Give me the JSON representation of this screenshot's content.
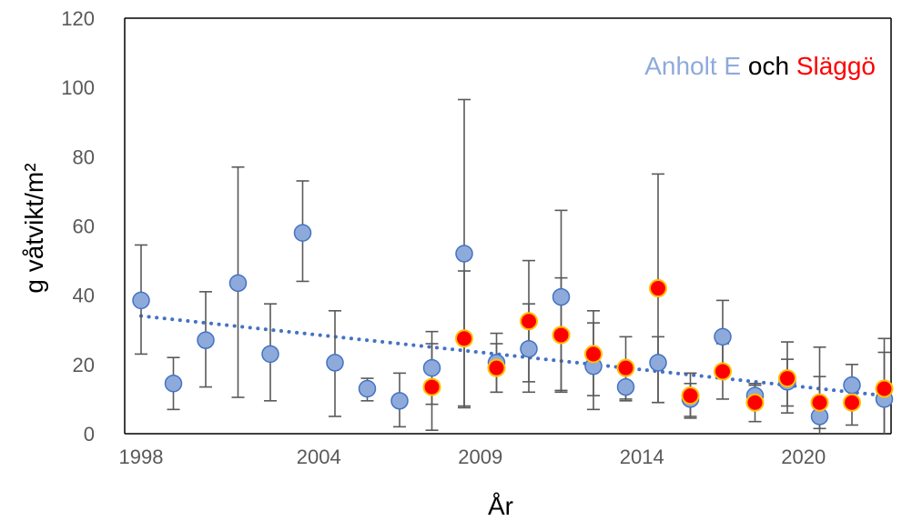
{
  "chart_data": {
    "type": "scatter",
    "title": "",
    "xlabel": "År",
    "ylabel": "g våtvikt/m²",
    "ylim": [
      0,
      120
    ],
    "yticks": [
      0,
      20,
      40,
      60,
      80,
      100,
      120
    ],
    "xlim": [
      1998,
      2023
    ],
    "xtick_labels": [
      {
        "year": 1998,
        "label": "1998"
      },
      {
        "year": 2003.5,
        "label": "2004"
      },
      {
        "year": 2008.5,
        "label": "2009"
      },
      {
        "year": 2013.5,
        "label": "2014"
      },
      {
        "year": 2018.5,
        "label": "2020"
      }
    ],
    "grid": false,
    "legend_placement": "top-right",
    "legend": {
      "series_a_label": "Anholt E",
      "connector": "och",
      "series_b_label": "Släggö"
    },
    "colors": {
      "anholt_fill": "#8eaadb",
      "anholt_stroke": "#4472c4",
      "slaggo_fill": "#ff0000",
      "slaggo_stroke": "#ffc000",
      "errorbar": "#595959",
      "trend": "#4472c4",
      "legend_och": "#000000"
    },
    "series": [
      {
        "name": "Anholt E",
        "points": [
          {
            "x": 1998,
            "y": 38.5,
            "lo": 23.0,
            "hi": 54.5
          },
          {
            "x": 1999,
            "y": 14.5,
            "lo": 7.0,
            "hi": 22.0
          },
          {
            "x": 2000,
            "y": 27.0,
            "lo": 13.5,
            "hi": 41.0
          },
          {
            "x": 2001,
            "y": 43.5,
            "lo": 10.5,
            "hi": 77.0
          },
          {
            "x": 2002,
            "y": 23.0,
            "lo": 9.5,
            "hi": 37.5
          },
          {
            "x": 2003,
            "y": 58.0,
            "lo": 44.0,
            "hi": 73.0
          },
          {
            "x": 2004,
            "y": 20.5,
            "lo": 5.0,
            "hi": 35.5
          },
          {
            "x": 2005,
            "y": 13.0,
            "lo": 9.5,
            "hi": 16.0
          },
          {
            "x": 2006,
            "y": 9.5,
            "lo": 2.0,
            "hi": 17.5
          },
          {
            "x": 2007,
            "y": 19.0,
            "lo": 8.5,
            "hi": 29.5
          },
          {
            "x": 2008,
            "y": 52.0,
            "lo": 7.5,
            "hi": 96.5
          },
          {
            "x": 2009,
            "y": 20.5,
            "lo": 12.0,
            "hi": 29.0
          },
          {
            "x": 2010,
            "y": 24.5,
            "lo": 12.0,
            "hi": 37.5
          },
          {
            "x": 2011,
            "y": 39.5,
            "lo": 12.0,
            "hi": 64.5
          },
          {
            "x": 2012,
            "y": 19.5,
            "lo": 7.0,
            "hi": 32.0
          },
          {
            "x": 2013,
            "y": 13.5,
            "lo": 9.5,
            "hi": 18.0
          },
          {
            "x": 2014,
            "y": 20.5,
            "lo": 9.0,
            "hi": 28.0
          },
          {
            "x": 2015,
            "y": 10.0,
            "lo": 5.0,
            "hi": 14.5
          },
          {
            "x": 2016,
            "y": 28.0,
            "lo": 17.5,
            "hi": 38.5
          },
          {
            "x": 2017,
            "y": 11.0,
            "lo": 7.5,
            "hi": 14.0
          },
          {
            "x": 2018,
            "y": 15.0,
            "lo": 8.0,
            "hi": 21.5
          },
          {
            "x": 2019,
            "y": 5.0,
            "lo": 0.0,
            "hi": 25.0
          },
          {
            "x": 2020,
            "y": 14.0,
            "lo": 8.0,
            "hi": 20.0
          },
          {
            "x": 2021,
            "y": 10.0,
            "lo": 0.0,
            "hi": 23.5
          }
        ]
      },
      {
        "name": "Släggö",
        "points": [
          {
            "x": 2007,
            "y": 13.5,
            "lo": 1.0,
            "hi": 26.0
          },
          {
            "x": 2008,
            "y": 27.5,
            "lo": 8.0,
            "hi": 47.0
          },
          {
            "x": 2009,
            "y": 19.0,
            "lo": 12.0,
            "hi": 26.0
          },
          {
            "x": 2010,
            "y": 32.5,
            "lo": 15.0,
            "hi": 50.0
          },
          {
            "x": 2011,
            "y": 28.5,
            "lo": 12.5,
            "hi": 45.0
          },
          {
            "x": 2012,
            "y": 23.0,
            "lo": 11.0,
            "hi": 35.5
          },
          {
            "x": 2013,
            "y": 19.0,
            "lo": 10.0,
            "hi": 28.0
          },
          {
            "x": 2014,
            "y": 42.0,
            "lo": 9.0,
            "hi": 75.0
          },
          {
            "x": 2015,
            "y": 11.0,
            "lo": 4.5,
            "hi": 17.5
          },
          {
            "x": 2016,
            "y": 18.0,
            "lo": 10.0,
            "hi": 26.0
          },
          {
            "x": 2017,
            "y": 9.0,
            "lo": 3.5,
            "hi": 14.5
          },
          {
            "x": 2018,
            "y": 16.0,
            "lo": 6.0,
            "hi": 26.5
          },
          {
            "x": 2019,
            "y": 9.0,
            "lo": 1.5,
            "hi": 16.5
          },
          {
            "x": 2020,
            "y": 9.0,
            "lo": 2.5,
            "hi": 15.5
          },
          {
            "x": 2021,
            "y": 13.0,
            "lo": 0.0,
            "hi": 27.5
          }
        ]
      }
    ],
    "trendline": {
      "series": "Anholt E",
      "style": "dotted",
      "x0": 1998,
      "y0": 34.0,
      "x1": 2021,
      "y1": 11.0
    }
  }
}
